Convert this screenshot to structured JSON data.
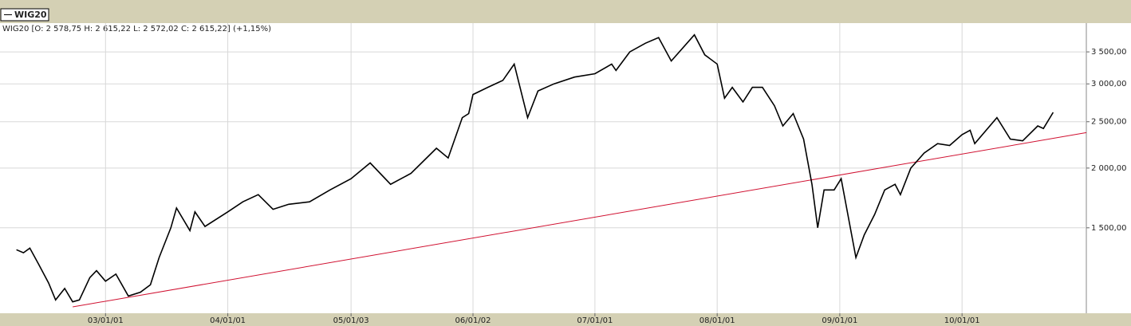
{
  "chart_data": {
    "type": "line",
    "info": "WIG20 [O: 2 578,75  H: 2 615,22  L: 2 572,02  C: 2 615,22] (+1,15%)",
    "log_scale": true,
    "grid": true,
    "xlim": [
      "2002-02-20",
      "2011-01-07"
    ],
    "xticks": [
      {
        "value": "2003-01-01",
        "label": "03/01/01"
      },
      {
        "value": "2004-01-01",
        "label": "04/01/01"
      },
      {
        "value": "2005-01-03",
        "label": "05/01/03"
      },
      {
        "value": "2006-01-02",
        "label": "06/01/02"
      },
      {
        "value": "2007-01-01",
        "label": "07/01/01"
      },
      {
        "value": "2008-01-01",
        "label": "08/01/01"
      },
      {
        "value": "2009-01-01",
        "label": "09/01/01"
      },
      {
        "value": "2010-01-01",
        "label": "10/01/01"
      }
    ],
    "ylim": [
      994,
      4020
    ],
    "yticks": [
      {
        "value": 1500,
        "label": "1 500,00"
      },
      {
        "value": 2000,
        "label": "2 000,00"
      },
      {
        "value": 2500,
        "label": "2 500,00"
      },
      {
        "value": 3000,
        "label": "3 000,00"
      },
      {
        "value": 3500,
        "label": "3 500,00"
      }
    ],
    "series": [
      {
        "name": "WIG20",
        "color": "#000000",
        "x": [
          "2002-04-10",
          "2002-05-01",
          "2002-05-20",
          "2002-06-15",
          "2002-07-15",
          "2002-08-05",
          "2002-09-01",
          "2002-09-25",
          "2002-10-15",
          "2002-11-15",
          "2002-12-05",
          "2003-01-01",
          "2003-02-01",
          "2003-03-10",
          "2003-04-15",
          "2003-05-15",
          "2003-06-10",
          "2003-07-15",
          "2003-08-01",
          "2003-09-10",
          "2003-09-25",
          "2003-10-25",
          "2004-01-01",
          "2004-02-15",
          "2004-04-01",
          "2004-05-15",
          "2004-07-01",
          "2004-09-01",
          "2004-11-01",
          "2005-01-03",
          "2005-03-01",
          "2005-05-01",
          "2005-07-01",
          "2005-09-15",
          "2005-10-20",
          "2005-12-01",
          "2005-12-20",
          "2006-01-02",
          "2006-02-15",
          "2006-04-01",
          "2006-05-05",
          "2006-06-14",
          "2006-07-15",
          "2006-09-01",
          "2006-11-01",
          "2007-01-01",
          "2007-02-20",
          "2007-03-05",
          "2007-04-15",
          "2007-06-01",
          "2007-07-10",
          "2007-08-17",
          "2007-10-25",
          "2007-11-25",
          "2008-01-01",
          "2008-01-23",
          "2008-02-15",
          "2008-03-18",
          "2008-04-15",
          "2008-05-15",
          "2008-06-20",
          "2008-07-15",
          "2008-08-15",
          "2008-09-15",
          "2008-10-10",
          "2008-10-27",
          "2008-11-15",
          "2008-12-15",
          "2009-01-05",
          "2009-02-18",
          "2009-03-15",
          "2009-04-15",
          "2009-05-15",
          "2009-06-15",
          "2009-07-01",
          "2009-08-01",
          "2009-09-10",
          "2009-10-20",
          "2009-11-25",
          "2010-01-01",
          "2010-01-25",
          "2010-02-08",
          "2010-04-15",
          "2010-05-25",
          "2010-07-01",
          "2010-08-15",
          "2010-09-01",
          "2010-09-30"
        ],
        "values": [
          1350,
          1330,
          1360,
          1260,
          1150,
          1060,
          1120,
          1050,
          1060,
          1180,
          1220,
          1160,
          1200,
          1080,
          1100,
          1140,
          1300,
          1500,
          1650,
          1480,
          1620,
          1510,
          1620,
          1700,
          1760,
          1640,
          1680,
          1700,
          1800,
          1900,
          2050,
          1850,
          1950,
          2200,
          2100,
          2550,
          2600,
          2850,
          2950,
          3050,
          3300,
          2550,
          2900,
          3000,
          3100,
          3150,
          3300,
          3200,
          3500,
          3650,
          3750,
          3350,
          3800,
          3450,
          3300,
          2800,
          2950,
          2750,
          2950,
          2950,
          2700,
          2450,
          2600,
          2300,
          1850,
          1500,
          1800,
          1800,
          1900,
          1300,
          1450,
          1600,
          1800,
          1850,
          1760,
          2000,
          2150,
          2250,
          2230,
          2350,
          2400,
          2250,
          2550,
          2300,
          2280,
          2450,
          2420,
          2615.22
        ]
      }
    ],
    "trendline": {
      "color": "#d01030",
      "x": [
        "2002-09-25",
        "2011-01-07"
      ],
      "values": [
        1025,
        2372
      ]
    }
  }
}
